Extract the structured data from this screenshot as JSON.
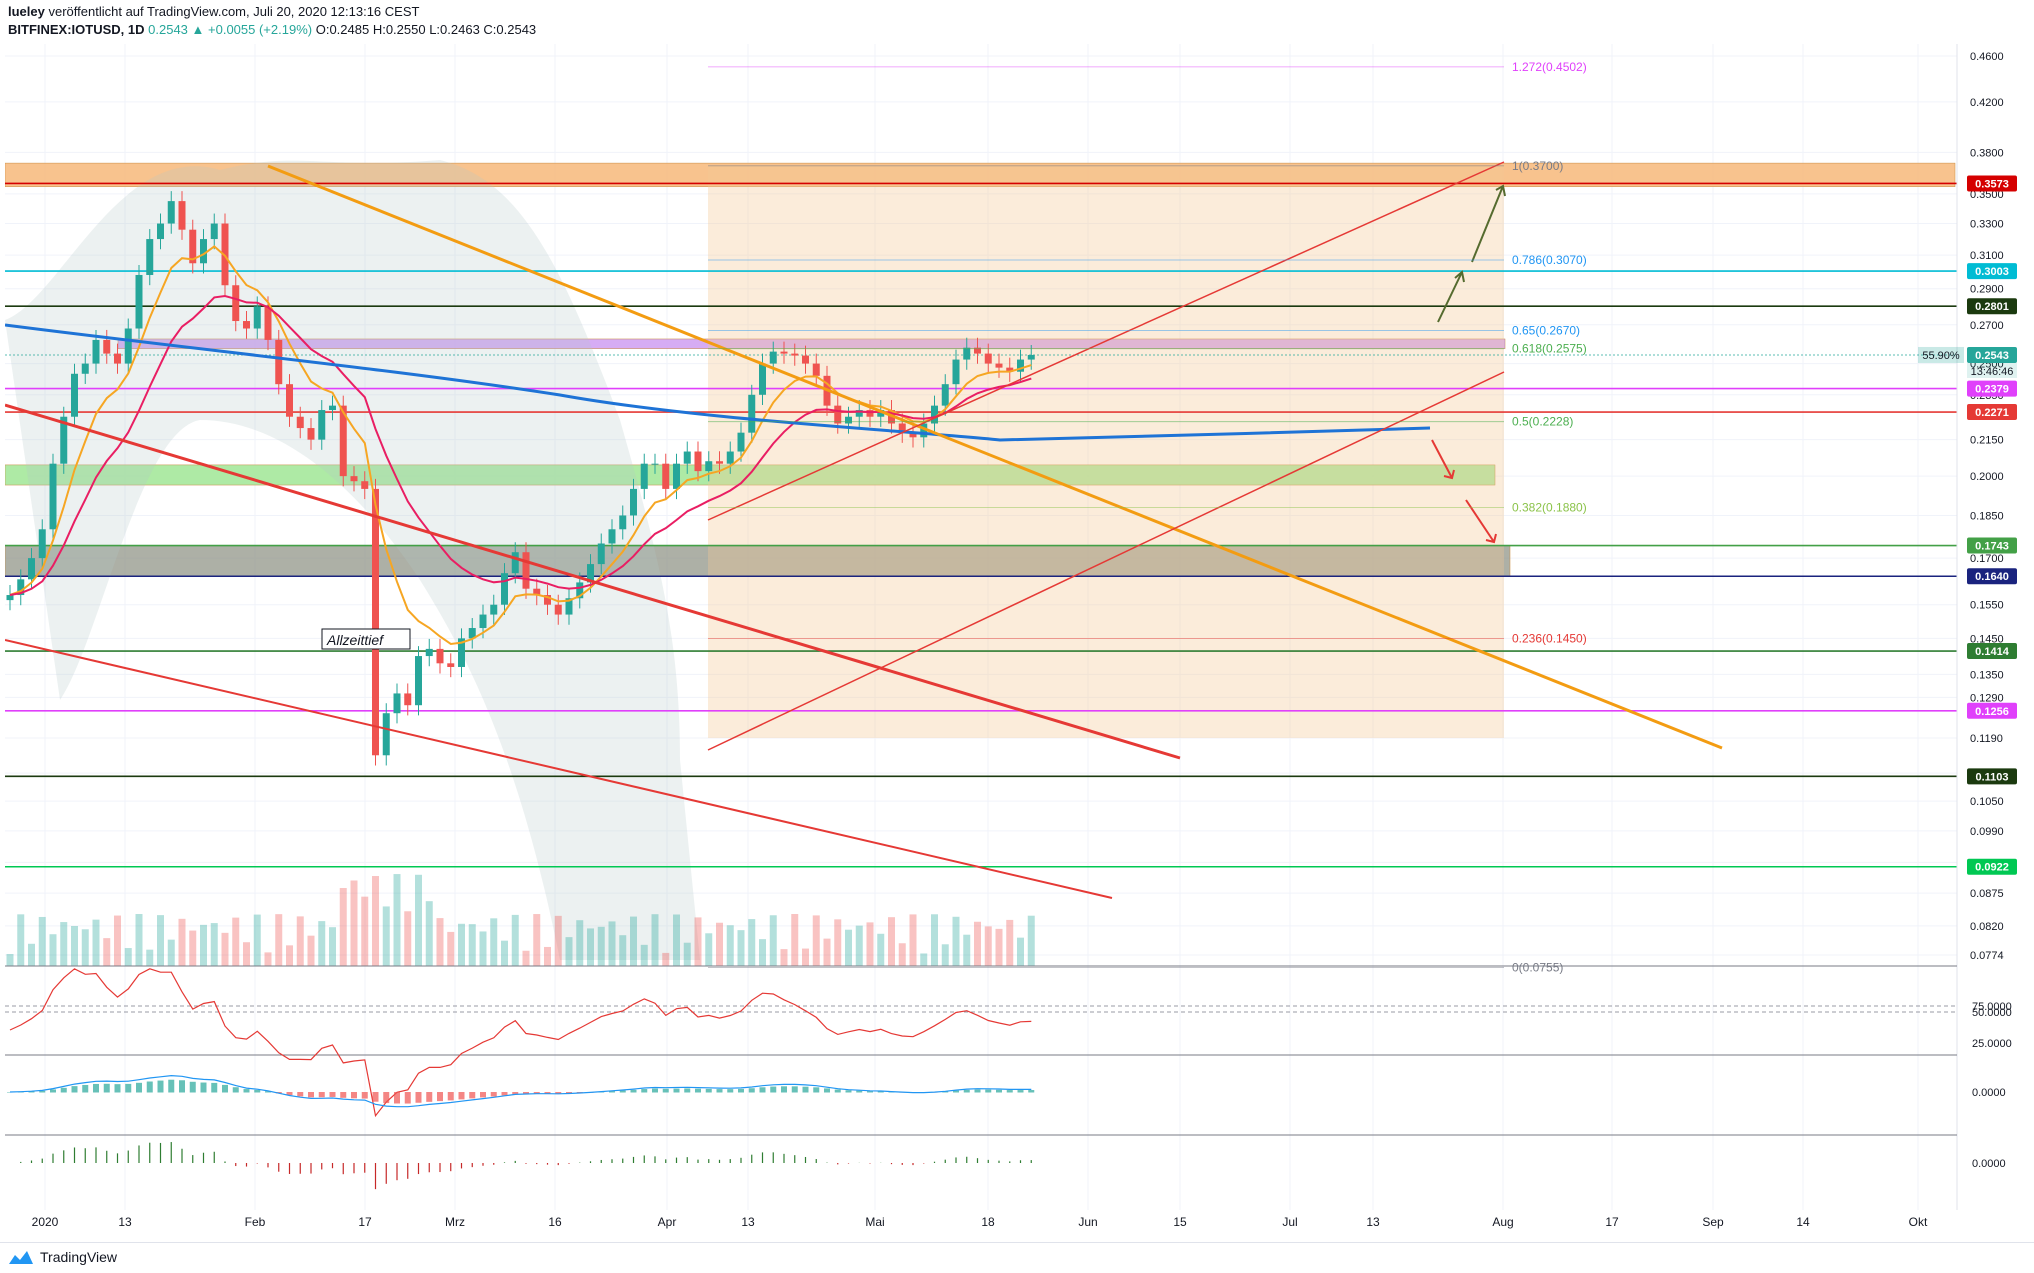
{
  "header": {
    "author": "lueley",
    "published_text": "veröffentlicht auf TradingView.com, Juli 20, 2020 12:13:16 CEST",
    "symbol": "BITFINEX:IOTUSD, 1D",
    "last": "0.2543",
    "change": "▲ +0.0055 (+2.19%)",
    "ohlc": "O:0.2485 H:0.2550 L:0.2463 C:0.2543"
  },
  "footer": {
    "brand": "TradingView"
  },
  "annotations": {
    "allzeittief": "Allzeittief"
  },
  "colors": {
    "up": "#26a69a",
    "down": "#ef5350",
    "orange_zone": "#f7b97a",
    "purple_zone": "#cf9ef2",
    "green_zone": "#a5e89b",
    "grey_zone": "#8a8f80",
    "channel_fill": "#f4c896",
    "ma200": "#1e73d6",
    "ema_orange": "#f6a623",
    "ema_red": "#e91e63",
    "bollinger": "#4aa59a"
  },
  "chart_data": {
    "type": "line",
    "title": "BITFINEX:IOTUSD, 1D",
    "y_axis": {
      "scale": "log",
      "ticks": [
        "0.4600",
        "0.4200",
        "0.3800",
        "0.3500",
        "0.3300",
        "0.3100",
        "0.2900",
        "0.2700",
        "0.2500",
        "0.2350",
        "0.2150",
        "0.2000",
        "0.1850",
        "0.1700",
        "0.1550",
        "0.1450",
        "0.1350",
        "0.1290",
        "0.1190",
        "0.1110",
        "0.1050",
        "0.0990",
        "0.0930",
        "0.0875",
        "0.0820",
        "0.0774"
      ]
    },
    "x_axis": {
      "labels": [
        "2020",
        "13",
        "Feb",
        "17",
        "Mrz",
        "16",
        "Apr",
        "13",
        "Mai",
        "18",
        "Jun",
        "15",
        "Jul",
        "13",
        "Aug",
        "17",
        "Sep",
        "14",
        "Okt"
      ]
    },
    "price_labels": [
      {
        "value": 0.3573,
        "label": "0.3573",
        "color": "#d50000"
      },
      {
        "value": 0.3003,
        "label": "0.3003",
        "color": "#00bcd4"
      },
      {
        "value": 0.2801,
        "label": "0.2801",
        "color": "#1b3a0f"
      },
      {
        "value": 0.2543,
        "label": "0.2543",
        "color": "#26a69a"
      },
      {
        "value": 0.2379,
        "label": "0.2379",
        "color": "#e040fb"
      },
      {
        "value": 0.2271,
        "label": "0.2271",
        "color": "#e53935"
      },
      {
        "value": 0.1743,
        "label": "0.1743",
        "color": "#43a047"
      },
      {
        "value": 0.164,
        "label": "0.1640",
        "color": "#1a237e"
      },
      {
        "value": 0.1414,
        "label": "0.1414",
        "color": "#2e7d32"
      },
      {
        "value": 0.1256,
        "label": "0.1256",
        "color": "#e040fb"
      },
      {
        "value": 0.1103,
        "label": "0.1103",
        "color": "#1b3a0f"
      },
      {
        "value": 0.0922,
        "label": "0.0922",
        "color": "#00c853"
      }
    ],
    "countdown": "13:46:46",
    "rsi_value_label": "55.90%",
    "fib_levels": [
      {
        "label": "1.272(0.4502)",
        "value": 0.4502,
        "color": "#e040fb"
      },
      {
        "label": "1(0.3700)",
        "value": 0.37,
        "color": "#787b86"
      },
      {
        "label": "0.786(0.3070)",
        "value": 0.307,
        "color": "#2196f3"
      },
      {
        "label": "0.65(0.2670)",
        "value": 0.267,
        "color": "#2196f3"
      },
      {
        "label": "0.618(0.2575)",
        "value": 0.2575,
        "color": "#4caf50"
      },
      {
        "label": "0.5(0.2228)",
        "value": 0.2228,
        "color": "#4caf50"
      },
      {
        "label": "0.382(0.1880)",
        "value": 0.188,
        "color": "#8bc34a"
      },
      {
        "label": "0.236(0.1450)",
        "value": 0.145,
        "color": "#e53935"
      },
      {
        "label": "0(0.0755)",
        "value": 0.0755,
        "color": "#787b86"
      }
    ],
    "horizontal_levels": [
      0.3573,
      0.3003,
      0.2801,
      0.2379,
      0.2271,
      0.1743,
      0.164,
      0.1414,
      0.1256,
      0.1103,
      0.0922
    ],
    "zones": [
      {
        "name": "resistance-orange",
        "from": 0.355,
        "to": 0.372
      },
      {
        "name": "resistance-purple",
        "from": 0.2575,
        "to": 0.2625
      },
      {
        "name": "support-green",
        "from": 0.1965,
        "to": 0.2045
      },
      {
        "name": "support-grey",
        "from": 0.164,
        "to": 0.1743
      }
    ],
    "close_series": [
      0.158,
      0.163,
      0.17,
      0.18,
      0.205,
      0.225,
      0.245,
      0.25,
      0.262,
      0.255,
      0.25,
      0.268,
      0.298,
      0.32,
      0.33,
      0.345,
      0.326,
      0.305,
      0.32,
      0.33,
      0.292,
      0.272,
      0.268,
      0.28,
      0.262,
      0.24,
      0.225,
      0.22,
      0.215,
      0.228,
      0.23,
      0.2,
      0.198,
      0.195,
      0.115,
      0.125,
      0.13,
      0.127,
      0.14,
      0.142,
      0.138,
      0.137,
      0.145,
      0.148,
      0.152,
      0.155,
      0.165,
      0.172,
      0.16,
      0.158,
      0.155,
      0.152,
      0.157,
      0.162,
      0.168,
      0.175,
      0.18,
      0.185,
      0.195,
      0.205,
      0.205,
      0.195,
      0.205,
      0.21,
      0.202,
      0.206,
      0.205,
      0.21,
      0.218,
      0.235,
      0.25,
      0.256,
      0.255,
      0.254,
      0.25,
      0.244,
      0.23,
      0.222,
      0.225,
      0.228,
      0.225,
      0.228,
      0.222,
      0.218,
      0.216,
      0.222,
      0.23,
      0.24,
      0.252,
      0.258,
      0.255,
      0.25,
      0.248,
      0.246,
      0.252,
      0.2543
    ],
    "indicators": {
      "rsi_levels": [
        "75.0000",
        "50.0000",
        "25.0000"
      ],
      "macd_zero": "0.0000",
      "osc_zero": "0.0000"
    }
  }
}
